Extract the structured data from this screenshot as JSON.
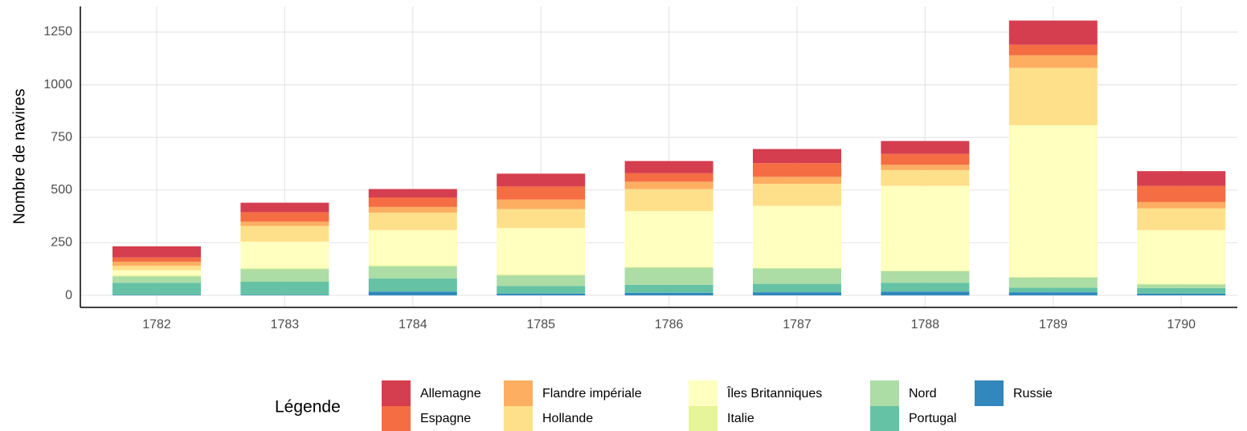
{
  "chart_data": {
    "type": "stacked_bar",
    "ylabel": "Nombre de navires",
    "legend_title": "Légende",
    "categories": [
      "1782",
      "1783",
      "1784",
      "1785",
      "1786",
      "1787",
      "1788",
      "1789",
      "1790"
    ],
    "ylim": [
      -57,
      1372
    ],
    "yticks": [
      0,
      250,
      500,
      750,
      1000,
      1250
    ],
    "grid": true,
    "legend_position": "bottom",
    "series": [
      {
        "name": "Allemagne",
        "color": "#d53e4f",
        "values": [
          53,
          45,
          40,
          61,
          58,
          67,
          61,
          115,
          70
        ]
      },
      {
        "name": "Espagne",
        "color": "#f46d43",
        "values": [
          20,
          45,
          45,
          62,
          40,
          65,
          52,
          50,
          77
        ]
      },
      {
        "name": "Flandre impériale",
        "color": "#fdae61",
        "values": [
          20,
          20,
          27,
          45,
          35,
          33,
          25,
          60,
          30
        ]
      },
      {
        "name": "Hollande",
        "color": "#fee08b",
        "values": [
          20,
          75,
          83,
          90,
          105,
          105,
          75,
          272,
          103
        ]
      },
      {
        "name": "Îles Britanniques",
        "color": "#ffffbf",
        "values": [
          25,
          125,
          167,
          220,
          265,
          295,
          402,
          720,
          255
        ]
      },
      {
        "name": "Italie",
        "color": "#e6f598",
        "values": [
          5,
          5,
          5,
          5,
          3,
          2,
          3,
          3,
          3
        ]
      },
      {
        "name": "Nord",
        "color": "#abdda4",
        "values": [
          30,
          60,
          58,
          50,
          82,
          73,
          55,
          48,
          17
        ]
      },
      {
        "name": "Portugal",
        "color": "#66c2a5",
        "values": [
          57,
          62,
          62,
          37,
          38,
          40,
          42,
          22,
          27
        ]
      },
      {
        "name": "Russie",
        "color": "#3288bd",
        "values": [
          3,
          3,
          18,
          8,
          12,
          15,
          18,
          15,
          8
        ]
      }
    ]
  }
}
